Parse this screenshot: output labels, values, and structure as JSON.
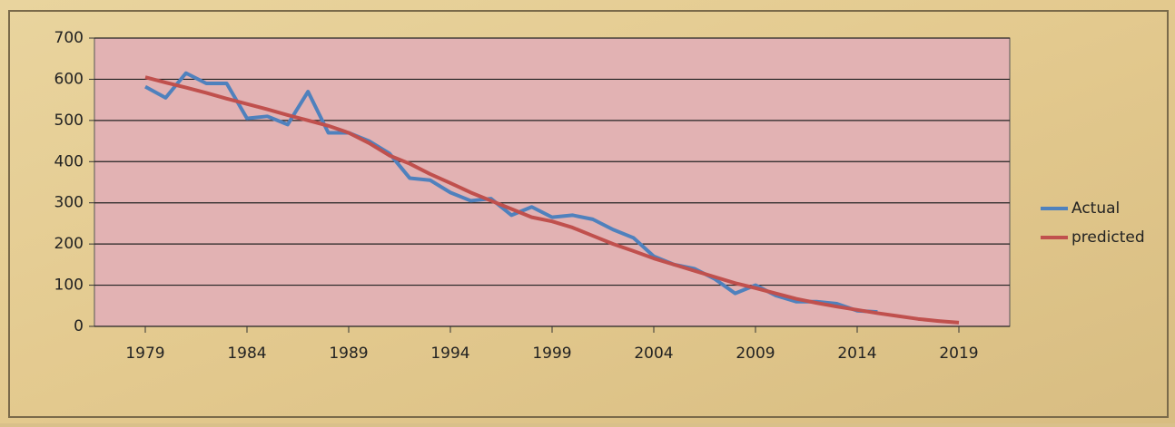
{
  "chart_data": {
    "type": "line",
    "x": [
      1979,
      1980,
      1981,
      1982,
      1983,
      1984,
      1985,
      1986,
      1987,
      1988,
      1989,
      1990,
      1991,
      1992,
      1993,
      1994,
      1995,
      1996,
      1997,
      1998,
      1999,
      2000,
      2001,
      2002,
      2003,
      2004,
      2005,
      2006,
      2007,
      2008,
      2009,
      2010,
      2011,
      2012,
      2013,
      2014,
      2015,
      2016,
      2017,
      2018,
      2019
    ],
    "series": [
      {
        "name": "Actual",
        "color": "#4f81bd",
        "values": [
          582,
          555,
          615,
          590,
          590,
          505,
          510,
          490,
          570,
          470,
          470,
          450,
          420,
          360,
          355,
          325,
          305,
          310,
          270,
          290,
          265,
          270,
          260,
          235,
          215,
          170,
          150,
          140,
          115,
          80,
          100,
          75,
          60,
          60,
          55,
          38,
          35,
          null,
          null,
          null,
          null
        ]
      },
      {
        "name": "predicted",
        "color": "#c0504d",
        "values": [
          605,
          592,
          580,
          567,
          553,
          540,
          527,
          513,
          500,
          487,
          470,
          445,
          415,
          395,
          370,
          348,
          325,
          305,
          285,
          265,
          255,
          240,
          220,
          200,
          183,
          165,
          150,
          135,
          120,
          105,
          93,
          80,
          67,
          57,
          48,
          40,
          32,
          25,
          18,
          13,
          9
        ]
      }
    ],
    "xlim": [
      1976.5,
      2021.5
    ],
    "xticks": [
      1979,
      1984,
      1989,
      1994,
      1999,
      2004,
      2009,
      2014,
      2019
    ],
    "ylim": [
      0,
      700
    ],
    "yticks": [
      0,
      100,
      200,
      300,
      400,
      500,
      600,
      700
    ],
    "grid": true,
    "legend": "right"
  }
}
